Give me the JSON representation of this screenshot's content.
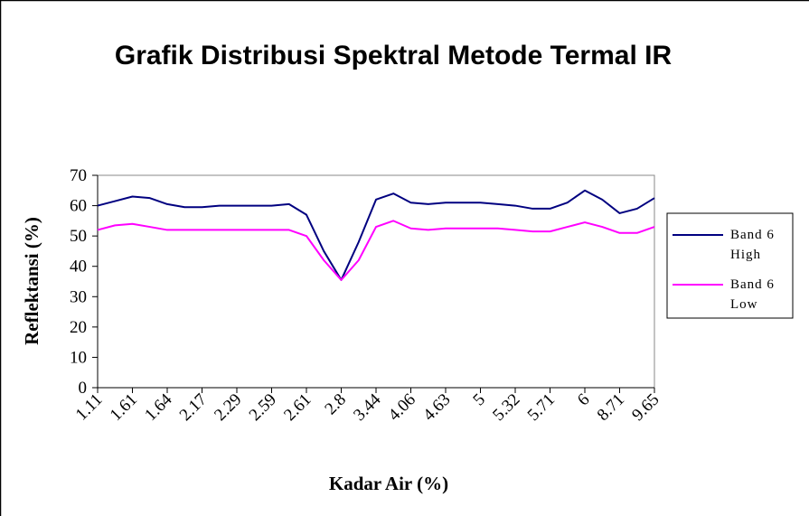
{
  "chart_data": {
    "type": "line",
    "title": "Grafik Distribusi Spektral Metode Termal IR",
    "x_label": "Kadar Air (%)",
    "y_label": "Reflektansi (%)",
    "categories": [
      "1.11",
      null,
      "1.61",
      null,
      "1.64",
      null,
      "2.17",
      null,
      "2.29",
      null,
      "2.59",
      null,
      "2.61",
      null,
      "2.8",
      null,
      "3.44",
      null,
      "4.06",
      null,
      "4.63",
      null,
      "5",
      null,
      "5.32",
      null,
      "5.71",
      null,
      "6",
      null,
      "8.71",
      null,
      "9.65"
    ],
    "series": [
      {
        "name": "Band 6 High",
        "color": "#000080",
        "values": [
          60,
          61.5,
          63,
          62.5,
          60.5,
          59.5,
          59.5,
          60,
          60,
          60,
          60,
          60.5,
          57,
          45,
          35.5,
          48,
          62,
          64,
          61,
          60.5,
          61,
          61,
          61,
          60.5,
          60,
          59,
          59,
          61,
          65,
          62,
          57.5,
          59,
          62.5
        ]
      },
      {
        "name": "Band 6 Low",
        "color": "#ff00ff",
        "values": [
          52,
          53.5,
          54,
          53,
          52,
          52,
          52,
          52,
          52,
          52,
          52,
          52,
          50,
          42,
          35.5,
          42,
          53,
          55,
          52.5,
          52,
          52.5,
          52.5,
          52.5,
          52.5,
          52,
          51.5,
          51.5,
          53,
          54.5,
          53,
          51,
          51,
          53
        ]
      }
    ],
    "ylim": [
      0,
      70
    ],
    "yticks": [
      0,
      10,
      20,
      30,
      40,
      50,
      60,
      70
    ],
    "legend": "right"
  }
}
